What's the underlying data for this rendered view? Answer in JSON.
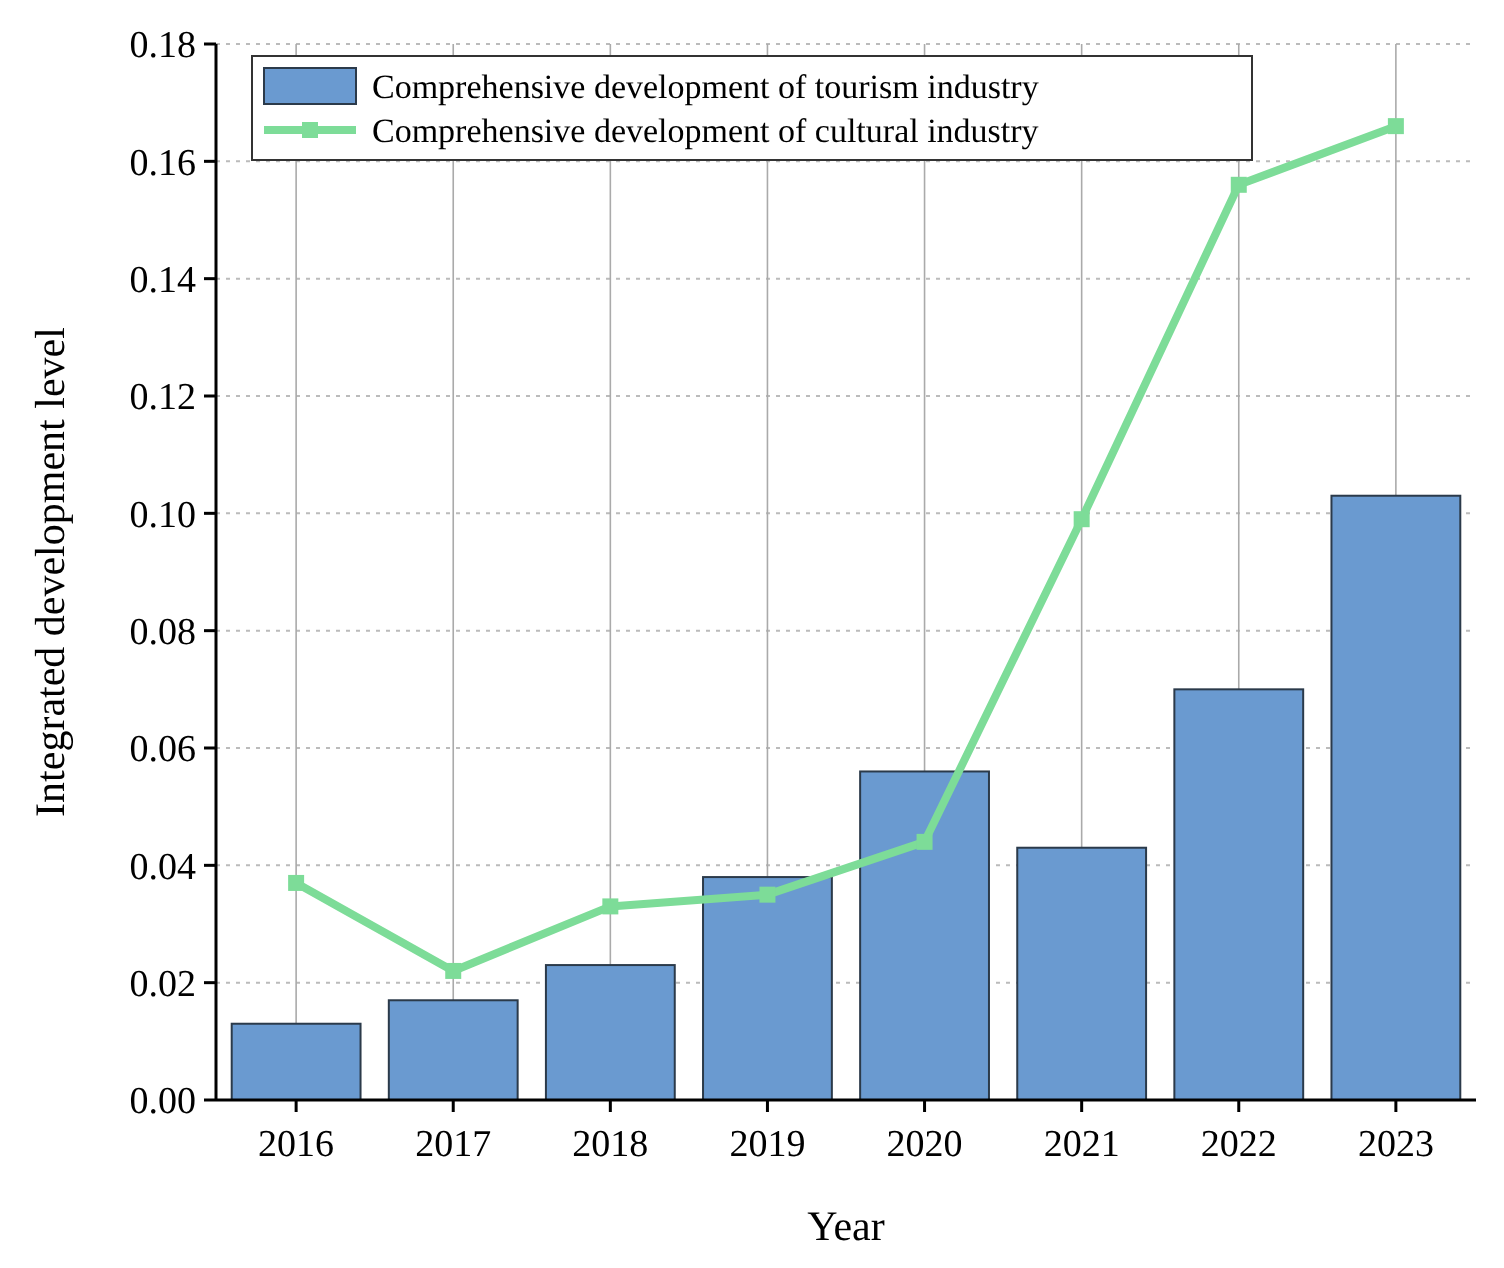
{
  "chart_data": {
    "type": "bar",
    "xlabel": "Year",
    "ylabel": "Integrated development level",
    "categories": [
      "2016",
      "2017",
      "2018",
      "2019",
      "2020",
      "2021",
      "2022",
      "2023"
    ],
    "series": [
      {
        "name": "Comprehensive development of tourism industry",
        "color": "#6a9ad0",
        "values": [
          0.013,
          0.017,
          0.023,
          0.038,
          0.056,
          0.043,
          0.07,
          0.103
        ]
      },
      {
        "name": "Comprehensive development of cultural industry",
        "type": "line",
        "color": "#7ddc98",
        "values": [
          0.037,
          0.022,
          0.033,
          0.035,
          0.044,
          0.099,
          0.156,
          0.166
        ]
      }
    ],
    "ylim": [
      0,
      0.18
    ],
    "yticks": [
      {
        "value": 0,
        "label": "0.00"
      },
      {
        "value": 0.02,
        "label": "0.02"
      },
      {
        "value": 0.04,
        "label": "0.04"
      },
      {
        "value": 0.06,
        "label": "0.06"
      },
      {
        "value": 0.08,
        "label": "0.08"
      },
      {
        "value": 0.1,
        "label": "0.10"
      },
      {
        "value": 0.12,
        "label": "0.12"
      },
      {
        "value": 0.14,
        "label": "0.14"
      },
      {
        "value": 0.16,
        "label": "0.16"
      },
      {
        "value": 0.18,
        "label": "0.18"
      }
    ],
    "grid": true,
    "legend": "top left",
    "marker": "square",
    "line_style": "solid"
  }
}
